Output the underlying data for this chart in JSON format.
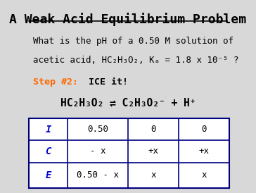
{
  "title": "A Weak Acid Equilibrium Problem",
  "bg_color": "#d8d8d8",
  "title_color": "#000000",
  "title_fontsize": 13,
  "line1": "What is the pH of a 0.50 M solution of",
  "line2": "acetic acid, HC₂H₃O₂, Kₐ = 1.8 x 10⁻⁵ ?",
  "step_label": "Step #2:",
  "step_rest": "  ICE it!",
  "step_color": "#ff6600",
  "step_rest_color": "#000000",
  "body_fontsize": 9,
  "eq_text": "HC₂H₃O₂ ⇌ C₂H₃O₂⁻ + H⁺",
  "table_header_color": "#0000cc",
  "table_border_color": "#000080",
  "ice_letters": [
    "I",
    "C",
    "E"
  ],
  "col1": [
    "0.50",
    "- x",
    "0.50 - x"
  ],
  "col2": [
    "0",
    "+x",
    "x"
  ],
  "col3": [
    "0",
    "+x",
    "x"
  ],
  "col_bounds": [
    0.04,
    0.22,
    0.595,
    0.97
  ],
  "row_bounds": [
    0.385,
    0.27,
    0.155,
    0.02
  ]
}
